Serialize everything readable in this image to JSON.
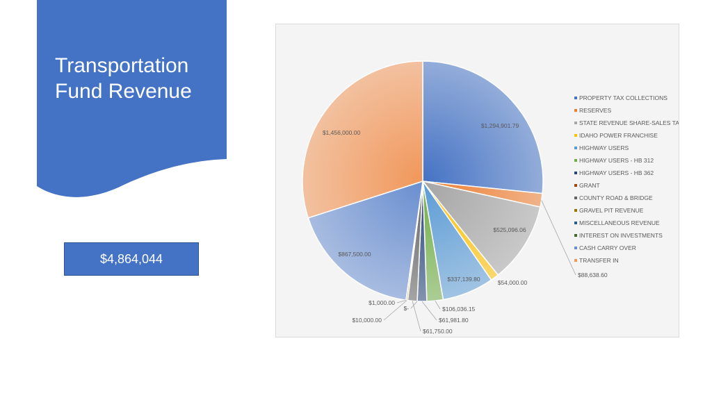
{
  "slide": {
    "title_line1": "Transportation",
    "title_line2": "Fund Revenue",
    "total": "$4,864,044"
  },
  "colors": {
    "banner": "#4472c4",
    "chart_background": "#f2f2f2"
  },
  "chart_data": {
    "type": "pie",
    "title": "",
    "legend_position": "right",
    "slices": [
      {
        "name": "PROPERTY TAX COLLECTIONS",
        "value": 1294901.79,
        "label": "$1,294,901.79",
        "color": "#4472c4"
      },
      {
        "name": "RESERVES",
        "value": 88638.6,
        "label": "$88,638.60",
        "color": "#ed7d31"
      },
      {
        "name": "STATE REVENUE SHARE-SALES TAX",
        "value": 525096.06,
        "label": "$525,096.06",
        "color": "#a5a5a5"
      },
      {
        "name": "IDAHO POWER FRANCHISE",
        "value": 54000.0,
        "label": "$54,000.00",
        "color": "#ffc000"
      },
      {
        "name": "HIGHWAY USERS",
        "value": 337139.8,
        "label": "$337,139.80",
        "color": "#5b9bd5"
      },
      {
        "name": "HIGHWAY USERS - HB 312",
        "value": 106036.15,
        "label": "$106,036.15",
        "color": "#70ad47"
      },
      {
        "name": "HIGHWAY USERS - HB 362",
        "value": 61981.8,
        "label": "$61,981.80",
        "color": "#264478"
      },
      {
        "name": "GRANT",
        "value": 0,
        "label": "$-",
        "color": "#9e480e"
      },
      {
        "name": "COUNTY ROAD & BRIDGE",
        "value": 61750.0,
        "label": "$61,750.00",
        "color": "#636363"
      },
      {
        "name": "GRAVEL PIT REVENUE",
        "value": 10000.0,
        "label": "$10,000.00",
        "color": "#997300"
      },
      {
        "name": "MISCELLANEOUS REVENUE",
        "value": 1000.0,
        "label": "$1,000.00",
        "color": "#255e91"
      },
      {
        "name": "INTEREST ON INVESTMENTS",
        "value": 0,
        "label": "",
        "color": "#43682b"
      },
      {
        "name": "CASH CARRY OVER",
        "value": 867500.0,
        "label": "$867,500.00",
        "color": "#698ed0"
      },
      {
        "name": "TRANSFER IN",
        "value": 1456000.0,
        "label": "$1,456,000.00",
        "color": "#f1975a"
      }
    ]
  }
}
